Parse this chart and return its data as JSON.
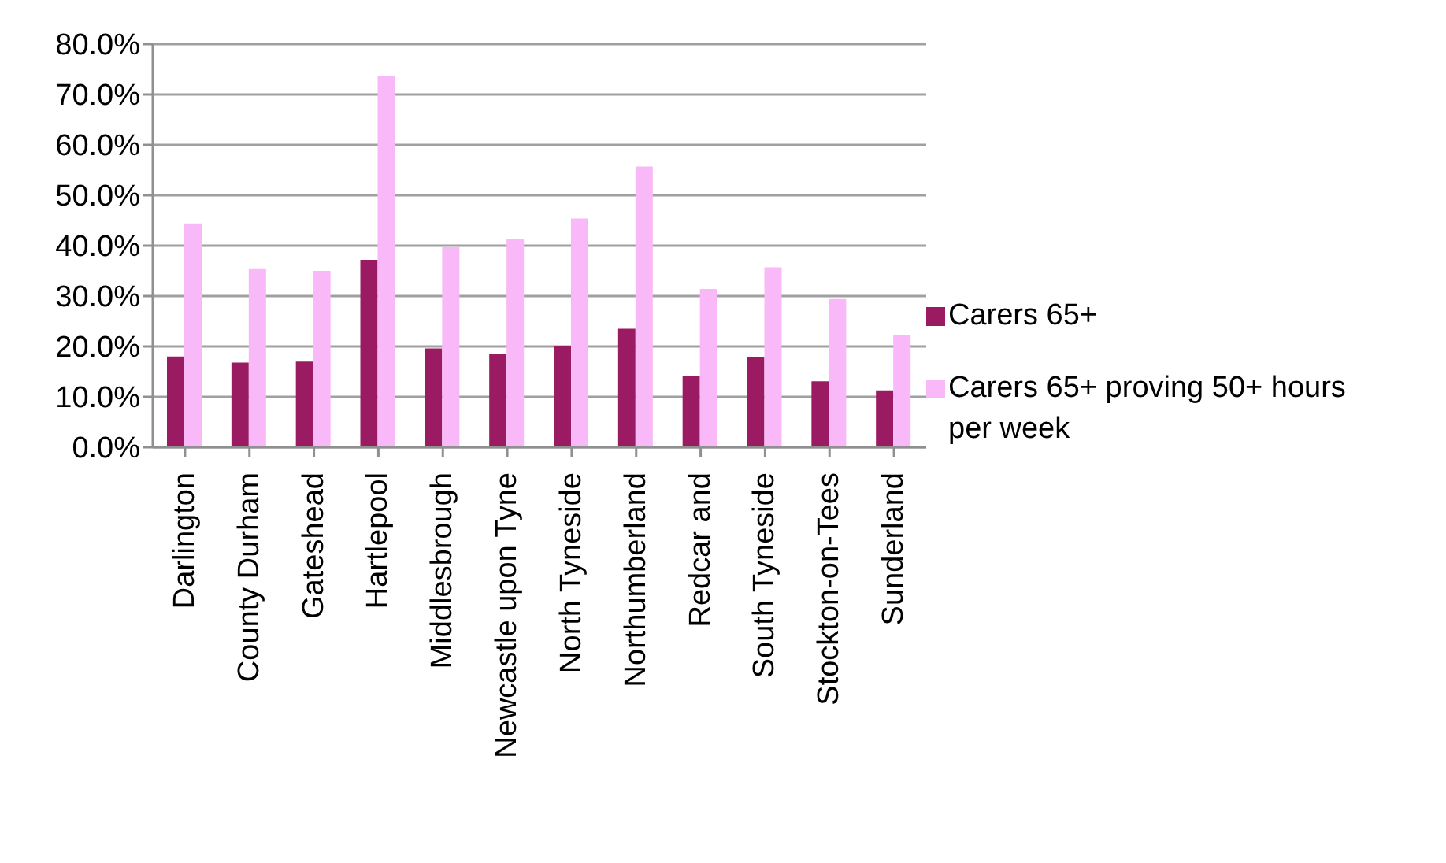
{
  "chart_data": {
    "type": "bar",
    "categories": [
      "Darlington",
      "County Durham",
      "Gateshead",
      "Hartlepool",
      "Middlesbrough",
      "Newcastle upon Tyne",
      "North Tyneside",
      "Northumberland",
      "Redcar and",
      "South Tyneside",
      "Stockton-on-Tees",
      "Sunderland"
    ],
    "series": [
      {
        "name": "Carers 65+",
        "color": "#9b1b63",
        "values": [
          18.0,
          16.8,
          17.0,
          37.2,
          19.6,
          18.5,
          20.1,
          23.5,
          14.2,
          17.8,
          13.1,
          11.3
        ]
      },
      {
        "name": "Carers 65+ proving 50+ hours per week",
        "color": "#f9b9f8",
        "values": [
          44.4,
          35.5,
          35.0,
          73.7,
          39.7,
          41.3,
          45.4,
          55.7,
          31.4,
          35.7,
          29.4,
          22.2
        ]
      }
    ],
    "ylim": [
      0,
      80
    ],
    "yticks": [
      {
        "value": 0,
        "label": "0.0%"
      },
      {
        "value": 10,
        "label": "10.0%"
      },
      {
        "value": 20,
        "label": "20.0%"
      },
      {
        "value": 30,
        "label": "30.0%"
      },
      {
        "value": 40,
        "label": "40.0%"
      },
      {
        "value": 50,
        "label": "50.0%"
      },
      {
        "value": 60,
        "label": "60.0%"
      },
      {
        "value": 70,
        "label": "70.0%"
      },
      {
        "value": 80,
        "label": "80.0%"
      }
    ],
    "grid": "y",
    "legend": "right"
  }
}
